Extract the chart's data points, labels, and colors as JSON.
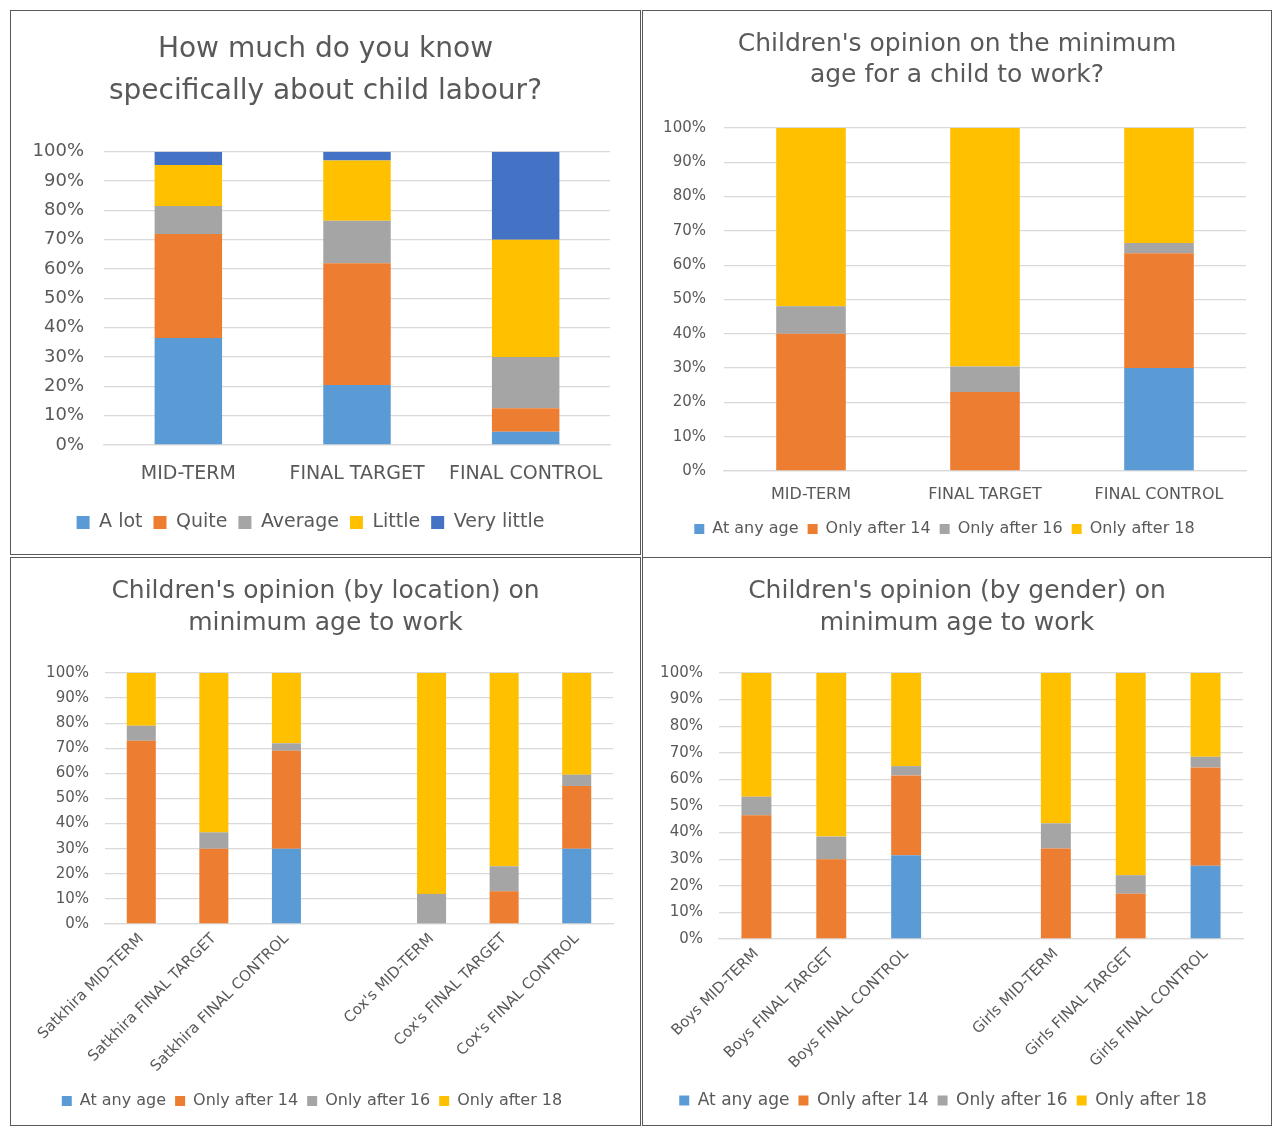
{
  "chart_data": [
    {
      "type": "bar",
      "stacked": true,
      "title": "How much do you know specifically about child labour?",
      "categories": [
        "MID-TERM",
        "FINAL TARGET",
        "FINAL CONTROL"
      ],
      "series": [
        {
          "name": "A lot",
          "color": "#5b9bd5",
          "values": [
            36.5,
            20.5,
            4.5
          ]
        },
        {
          "name": "Quite",
          "color": "#ed7d31",
          "values": [
            35.5,
            41.5,
            8
          ]
        },
        {
          "name": "Average",
          "color": "#a5a5a5",
          "values": [
            9.5,
            14.5,
            17.5
          ]
        },
        {
          "name": "Little",
          "color": "#ffc000",
          "values": [
            14,
            20.5,
            40
          ]
        },
        {
          "name": "Very little",
          "color": "#4472c4",
          "values": [
            4.5,
            3,
            30
          ]
        }
      ],
      "ylim": [
        0,
        100
      ],
      "yticks": [
        {
          "value": 0,
          "label": "0%"
        },
        {
          "value": 10,
          "label": "10%"
        },
        {
          "value": 20,
          "label": "20%"
        },
        {
          "value": 30,
          "label": "30%"
        },
        {
          "value": 40,
          "label": "40%"
        },
        {
          "value": 50,
          "label": "50%"
        },
        {
          "value": 60,
          "label": "60%"
        },
        {
          "value": 70,
          "label": "70%"
        },
        {
          "value": 80,
          "label": "80%"
        },
        {
          "value": 90,
          "label": "90%"
        },
        {
          "value": 100,
          "label": "100%"
        }
      ],
      "grid": "y",
      "legend": "bottom"
    },
    {
      "type": "bar",
      "stacked": true,
      "title": "Children's opinion on the minimum age for a child to work?",
      "categories": [
        "MID-TERM",
        "FINAL TARGET",
        "FINAL CONTROL"
      ],
      "series": [
        {
          "name": "At any age",
          "color": "#5b9bd5",
          "values": [
            0,
            0,
            30
          ]
        },
        {
          "name": "Only after 14",
          "color": "#ed7d31",
          "values": [
            40,
            23,
            33.5
          ]
        },
        {
          "name": "Only after 16",
          "color": "#a5a5a5",
          "values": [
            8,
            7.5,
            3
          ]
        },
        {
          "name": "Only after 18",
          "color": "#ffc000",
          "values": [
            52,
            69.5,
            33.5
          ]
        }
      ],
      "ylim": [
        0,
        100
      ],
      "yticks": [
        {
          "value": 0,
          "label": "0%"
        },
        {
          "value": 10,
          "label": "10%"
        },
        {
          "value": 20,
          "label": "20%"
        },
        {
          "value": 30,
          "label": "30%"
        },
        {
          "value": 40,
          "label": "40%"
        },
        {
          "value": 50,
          "label": "50%"
        },
        {
          "value": 60,
          "label": "60%"
        },
        {
          "value": 70,
          "label": "70%"
        },
        {
          "value": 80,
          "label": "80%"
        },
        {
          "value": 90,
          "label": "90%"
        },
        {
          "value": 100,
          "label": "100%"
        }
      ],
      "grid": "y",
      "legend": "bottom"
    },
    {
      "type": "bar",
      "stacked": true,
      "title": "Children's opinion (by location) on minimum age to work",
      "categories": [
        "Satkhira MID-TERM",
        "Satkhira FINAL TARGET",
        "Satkhira FINAL CONTROL",
        null,
        "Cox's MID-TERM",
        "Cox's FINAL TARGET",
        "Cox's FINAL CONTROL"
      ],
      "series": [
        {
          "name": "At any age",
          "color": "#5b9bd5",
          "values": [
            0,
            0,
            30,
            null,
            0,
            0,
            30
          ]
        },
        {
          "name": "Only after 14",
          "color": "#ed7d31",
          "values": [
            73,
            30,
            39,
            null,
            0,
            13,
            25
          ]
        },
        {
          "name": "Only after 16",
          "color": "#a5a5a5",
          "values": [
            6,
            6.5,
            3,
            null,
            12,
            10,
            4.5
          ]
        },
        {
          "name": "Only after 18",
          "color": "#ffc000",
          "values": [
            21,
            63.5,
            28,
            null,
            88,
            77,
            40.5
          ]
        }
      ],
      "ylim": [
        0,
        100
      ],
      "yticks": [
        {
          "value": 0,
          "label": "0%"
        },
        {
          "value": 10,
          "label": "10%"
        },
        {
          "value": 20,
          "label": "20%"
        },
        {
          "value": 30,
          "label": "30%"
        },
        {
          "value": 40,
          "label": "40%"
        },
        {
          "value": 50,
          "label": "50%"
        },
        {
          "value": 60,
          "label": "60%"
        },
        {
          "value": 70,
          "label": "70%"
        },
        {
          "value": 80,
          "label": "80%"
        },
        {
          "value": 90,
          "label": "90%"
        },
        {
          "value": 100,
          "label": "100%"
        }
      ],
      "grid": "y",
      "legend": "bottom"
    },
    {
      "type": "bar",
      "stacked": true,
      "title": "Children's opinion (by gender) on minimum age to work",
      "categories": [
        "Boys MID-TERM",
        "Boys FINAL TARGET",
        "Boys FINAL CONTROL",
        null,
        "Girls MID-TERM",
        "Girls FINAL TARGET",
        "Girls FINAL CONTROL"
      ],
      "series": [
        {
          "name": "At any age",
          "color": "#5b9bd5",
          "values": [
            0,
            0,
            31.5,
            null,
            0,
            0,
            27.5
          ]
        },
        {
          "name": "Only after 14",
          "color": "#ed7d31",
          "values": [
            46.5,
            30,
            30,
            null,
            34,
            17,
            37
          ]
        },
        {
          "name": "Only after 16",
          "color": "#a5a5a5",
          "values": [
            7,
            8.5,
            3.5,
            null,
            9.5,
            7,
            4
          ]
        },
        {
          "name": "Only after 18",
          "color": "#ffc000",
          "values": [
            46.5,
            61.5,
            35,
            null,
            56.5,
            76,
            31.5
          ]
        }
      ],
      "ylim": [
        0,
        100
      ],
      "yticks": [
        {
          "value": 0,
          "label": "0%"
        },
        {
          "value": 10,
          "label": "10%"
        },
        {
          "value": 20,
          "label": "20%"
        },
        {
          "value": 30,
          "label": "30%"
        },
        {
          "value": 40,
          "label": "40%"
        },
        {
          "value": 50,
          "label": "50%"
        },
        {
          "value": 60,
          "label": "60%"
        },
        {
          "value": 70,
          "label": "70%"
        },
        {
          "value": 80,
          "label": "80%"
        },
        {
          "value": 90,
          "label": "90%"
        },
        {
          "value": 100,
          "label": "100%"
        }
      ],
      "grid": "y",
      "legend": "bottom"
    }
  ]
}
